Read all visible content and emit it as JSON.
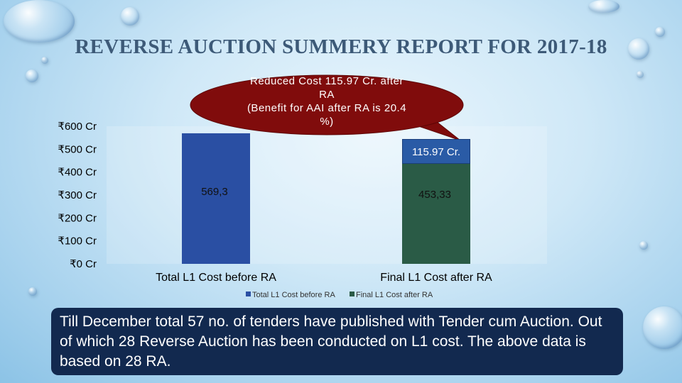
{
  "slide": {
    "title": "REVERSE AUCTION SUMMERY REPORT FOR 2017-18",
    "note": "Till December total 57 no. of tenders have published with Tender cum Auction. Out of which 28 Reverse Auction has been conducted on L1 cost. The above data is based on 28 RA."
  },
  "annotations": {
    "callout_lines": [
      "Reduced Cost 115.97 Cr. after",
      "RA",
      "(Benefit for AAI after RA is 20.4",
      "%)"
    ],
    "difference_label": "115.97 Cr."
  },
  "chart_data": {
    "type": "bar",
    "categories": [
      "Total L1 Cost before RA",
      "Final L1 Cost after RA"
    ],
    "values": [
      569.3,
      453.33
    ],
    "data_labels": [
      "569,3",
      "453,33"
    ],
    "bar_colors": [
      "#2a4fa3",
      "#2a5b46"
    ],
    "ylim": [
      0,
      600
    ],
    "yticks": [
      0,
      100,
      200,
      300,
      400,
      500,
      600
    ],
    "ytick_labels": [
      "₹0 Cr",
      "₹100 Cr",
      "₹200 Cr",
      "₹300 Cr",
      "₹400 Cr",
      "₹500 Cr",
      "₹600 Cr"
    ],
    "legend": {
      "position": "bottom",
      "entries": [
        {
          "label": "Total L1 Cost before RA",
          "color": "#2a4fa3"
        },
        {
          "label": "Final L1 Cost after RA",
          "color": "#2a5b46"
        }
      ]
    },
    "grid": false
  }
}
